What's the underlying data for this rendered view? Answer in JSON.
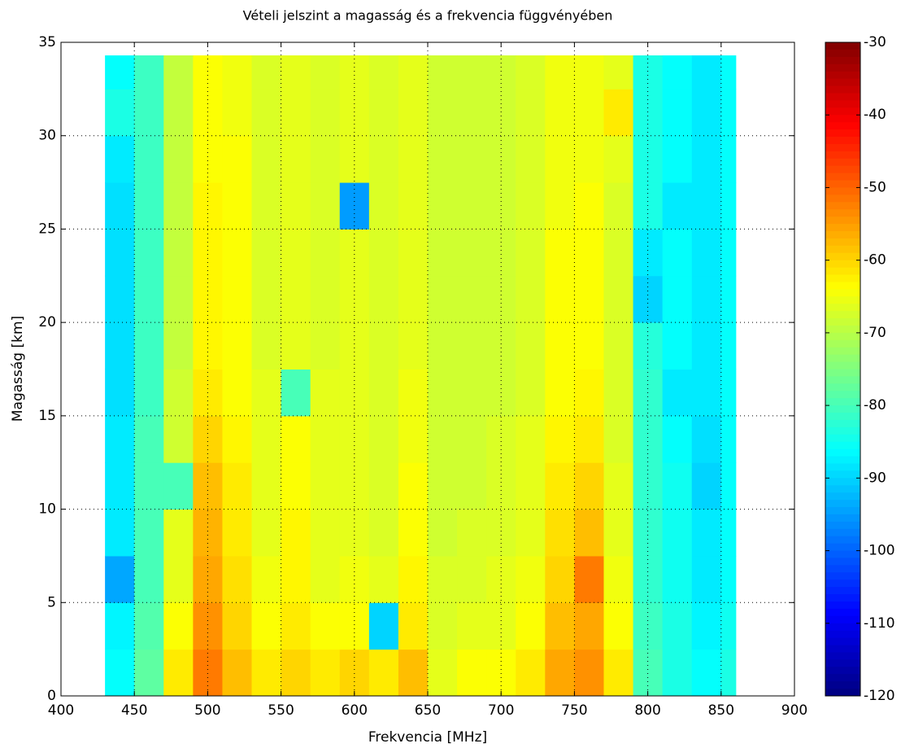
{
  "chart_data": {
    "type": "heatmap",
    "title": "Vételi jelszint a magasság és a frekvencia függvényében",
    "xlabel": "Frekvencia [MHz]",
    "ylabel": "Magasság [km]",
    "xlim": [
      400,
      900
    ],
    "xticks": [
      400,
      450,
      500,
      550,
      600,
      650,
      700,
      750,
      800,
      850,
      900
    ],
    "ylim": [
      0,
      35
    ],
    "yticks": [
      0,
      5,
      10,
      15,
      20,
      25,
      30,
      35
    ],
    "grid": true,
    "colormap": "jet",
    "clim": [
      -120,
      -30
    ],
    "cticks": [
      -30,
      -40,
      -50,
      -60,
      -70,
      -80,
      -90,
      -100,
      -110,
      -120
    ],
    "x_edges": [
      430,
      450,
      470,
      490,
      510,
      530,
      550,
      570,
      590,
      610,
      630,
      650,
      670,
      690,
      710,
      730,
      750,
      770,
      790,
      810,
      830,
      850,
      860
    ],
    "y_edges": [
      0,
      2.5,
      5,
      7.5,
      10,
      12.5,
      15,
      17.5,
      20,
      22.5,
      25,
      27.5,
      30,
      32.5,
      34.3
    ],
    "values": [
      [
        -86,
        -78,
        -62,
        -52,
        -58,
        -62,
        -60,
        -62,
        -60,
        -62,
        -58,
        -66,
        -64,
        -64,
        -62,
        -56,
        -54,
        -62,
        -80,
        -84,
        -86,
        -84
      ],
      [
        -87,
        -79,
        -64,
        -54,
        -60,
        -64,
        -62,
        -64,
        -64,
        -90,
        -62,
        -67,
        -66,
        -66,
        -64,
        -58,
        -56,
        -64,
        -81,
        -84,
        -87,
        -85
      ],
      [
        -94,
        -80,
        -66,
        -56,
        -61,
        -65,
        -63,
        -66,
        -65,
        -66,
        -63,
        -67,
        -67,
        -66,
        -65,
        -60,
        -52,
        -65,
        -82,
        -85,
        -88,
        -86
      ],
      [
        -88,
        -80,
        -66,
        -57,
        -62,
        -66,
        -63,
        -66,
        -66,
        -67,
        -64,
        -68,
        -67,
        -67,
        -66,
        -61,
        -58,
        -66,
        -82,
        -85,
        -88,
        -86
      ],
      [
        -88,
        -80,
        -80,
        -58,
        -62,
        -66,
        -64,
        -66,
        -66,
        -67,
        -64,
        -68,
        -68,
        -67,
        -66,
        -62,
        -60,
        -66,
        -82,
        -85,
        -90,
        -86
      ],
      [
        -88,
        -80,
        -68,
        -60,
        -63,
        -66,
        -64,
        -66,
        -66,
        -67,
        -65,
        -68,
        -68,
        -67,
        -66,
        -63,
        -62,
        -67,
        -82,
        -86,
        -89,
        -86
      ],
      [
        -89,
        -81,
        -68,
        -62,
        -64,
        -66,
        -80,
        -66,
        -66,
        -67,
        -65,
        -68,
        -68,
        -68,
        -67,
        -64,
        -63,
        -67,
        -82,
        -88,
        -88,
        -86
      ],
      [
        -89,
        -81,
        -69,
        -63,
        -64,
        -67,
        -66,
        -67,
        -66,
        -67,
        -66,
        -68,
        -68,
        -68,
        -67,
        -64,
        -64,
        -67,
        -83,
        -86,
        -88,
        -86
      ],
      [
        -89,
        -81,
        -69,
        -63,
        -64,
        -67,
        -66,
        -67,
        -66,
        -67,
        -66,
        -68,
        -68,
        -68,
        -67,
        -64,
        -64,
        -67,
        -90,
        -86,
        -88,
        -86
      ],
      [
        -89,
        -81,
        -69,
        -63,
        -64,
        -67,
        -66,
        -67,
        -66,
        -67,
        -66,
        -68,
        -68,
        -68,
        -67,
        -64,
        -64,
        -67,
        -88,
        -86,
        -88,
        -86
      ],
      [
        -89,
        -81,
        -69,
        -63,
        -64,
        -67,
        -66,
        -67,
        -95,
        -67,
        -66,
        -68,
        -68,
        -68,
        -67,
        -65,
        -64,
        -67,
        -84,
        -88,
        -88,
        -86
      ],
      [
        -88,
        -81,
        -69,
        -64,
        -64,
        -67,
        -66,
        -67,
        -66,
        -67,
        -66,
        -68,
        -68,
        -68,
        -67,
        -65,
        -65,
        -66,
        -84,
        -86,
        -88,
        -86
      ],
      [
        -84,
        -81,
        -69,
        -64,
        -65,
        -67,
        -66,
        -67,
        -66,
        -67,
        -66,
        -68,
        -68,
        -68,
        -67,
        -65,
        -65,
        -62,
        -84,
        -86,
        -88,
        -86
      ],
      [
        -86,
        -81,
        -69,
        -64,
        -65,
        -67,
        -66,
        -67,
        -66,
        -67,
        -66,
        -68,
        -68,
        -68,
        -67,
        -65,
        -65,
        -66,
        -84,
        -86,
        -88,
        -86
      ]
    ]
  }
}
